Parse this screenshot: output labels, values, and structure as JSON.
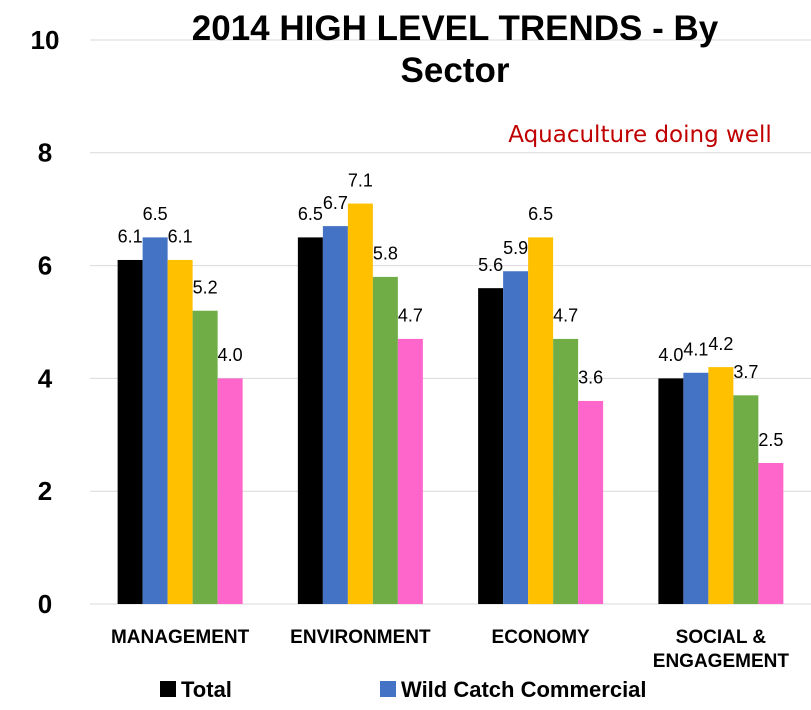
{
  "chart_data": {
    "type": "bar",
    "title": "2014 HIGH LEVEL TRENDS - By Sector",
    "annotation": "Aquaculture doing well",
    "categories": [
      "MANAGEMENT",
      "ENVIRONMENT",
      "ECONOMY",
      "SOCIAL & ENGAGEMENT"
    ],
    "series": [
      {
        "name": "Total",
        "color": "#000000",
        "values": [
          6.1,
          6.5,
          5.6,
          4
        ],
        "value_labels": [
          "6.1",
          "6.5",
          "5.6",
          "4.0"
        ]
      },
      {
        "name": "Wild Catch Commercial",
        "color": "#4472c4",
        "values": [
          6.5,
          6.7,
          5.9,
          4.1
        ]
      },
      {
        "color": "#ffc000",
        "values": [
          6.1,
          7.1,
          6.5,
          4.2
        ]
      },
      {
        "color": "#70ad47",
        "values": [
          5.2,
          5.8,
          4.7,
          3.7
        ]
      },
      {
        "color": "#ff66cc",
        "values": [
          4,
          4.7,
          3.6,
          2.5
        ],
        "value_labels": [
          "4.0",
          "4.7",
          "3.6",
          "2.5"
        ]
      }
    ],
    "ylim": [
      0,
      10
    ],
    "yticks": [
      0,
      2,
      4,
      6,
      8,
      10
    ],
    "grid": true,
    "legend": "bottom"
  }
}
